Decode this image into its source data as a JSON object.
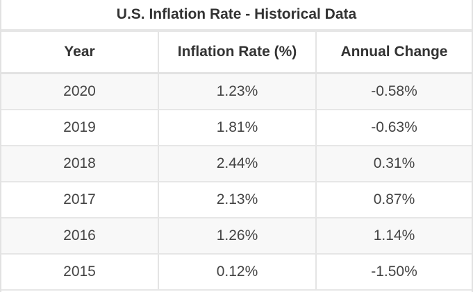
{
  "title": "U.S. Inflation Rate - Historical Data",
  "table": {
    "headers": [
      "Year",
      "Inflation Rate (%)",
      "Annual Change"
    ],
    "rows": [
      [
        "2020",
        "1.23%",
        "-0.58%"
      ],
      [
        "2019",
        "1.81%",
        "-0.63%"
      ],
      [
        "2018",
        "2.44%",
        "0.31%"
      ],
      [
        "2017",
        "2.13%",
        "0.87%"
      ],
      [
        "2016",
        "1.26%",
        "1.14%"
      ],
      [
        "2015",
        "0.12%",
        "-1.50%"
      ]
    ]
  }
}
